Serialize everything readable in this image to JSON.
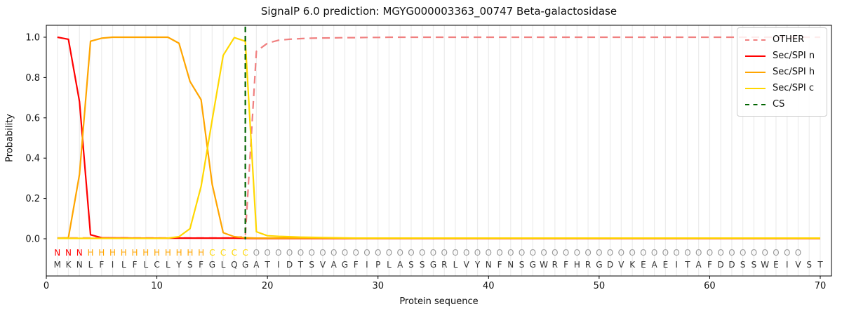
{
  "title": "SignalP 6.0 prediction: MGYG000003363_00747 Beta-galactosidase",
  "colors": {
    "other": "#f08080",
    "sec_spi_n": "#ff0000",
    "sec_spi_h": "#ffa500",
    "sec_spi_c": "#ffd700",
    "cs": "#006400",
    "grid": "#ececec",
    "axis": "#000000",
    "residue_text": "#333333",
    "region_O_text": "#9a9a9a"
  },
  "chart_data": {
    "type": "line",
    "title": "SignalP 6.0 prediction: MGYG000003363_00747 Beta-galactosidase",
    "xlabel": "Protein sequence",
    "ylabel": "Probability",
    "xlim": [
      0,
      71
    ],
    "ylim": [
      -0.18,
      1.06
    ],
    "grid": "vertical-per-residue",
    "legend_position": "upper right",
    "xticks": [
      0,
      10,
      20,
      30,
      40,
      50,
      60,
      70
    ],
    "yticks": [
      0.0,
      0.2,
      0.4,
      0.6,
      0.8,
      1.0
    ],
    "ytick_labels": [
      "0.0",
      "0.2",
      "0.4",
      "0.6",
      "0.8",
      "1.0"
    ],
    "cs_position": 18,
    "sequence": "MKNLFILFLCLYSFGLQGATIDTSVAGFIPLASSGRLVYNFNSGWRFHRGDVKEAEITAFDDSSWEIVST",
    "regions": "NNNHHHHHHHHHHHCCCCOOOOOOOOOOOOOOOOOOOOOOOOOOOOOOOOOOOOOOOOOOOOOOOOOO",
    "region_colors": {
      "N": "#ff0000",
      "H": "#ffa500",
      "C": "#ffd700",
      "O": "#9a9a9a"
    },
    "x": [
      1,
      2,
      3,
      4,
      5,
      6,
      7,
      8,
      9,
      10,
      11,
      12,
      13,
      14,
      15,
      16,
      17,
      18,
      19,
      20,
      21,
      22,
      23,
      24,
      25,
      26,
      27,
      28,
      29,
      30,
      31,
      32,
      33,
      34,
      35,
      36,
      37,
      38,
      39,
      40,
      41,
      42,
      43,
      44,
      45,
      46,
      47,
      48,
      49,
      50,
      51,
      52,
      53,
      54,
      55,
      56,
      57,
      58,
      59,
      60,
      61,
      62,
      63,
      64,
      65,
      66,
      67,
      68,
      69,
      70
    ],
    "series": [
      {
        "name": "OTHER",
        "color": "#f08080",
        "style": "dashed",
        "values": [
          0.004,
          0.004,
          0.004,
          0.004,
          0.004,
          0.004,
          0.004,
          0.004,
          0.004,
          0.004,
          0.004,
          0.004,
          0.004,
          0.004,
          0.004,
          0.004,
          0.005,
          0.012,
          0.93,
          0.97,
          0.985,
          0.99,
          0.993,
          0.995,
          0.996,
          0.997,
          0.998,
          0.998,
          0.999,
          0.999,
          1.0,
          1.0,
          1.0,
          1.0,
          1.0,
          1.0,
          1.0,
          1.0,
          1.0,
          1.0,
          1.0,
          1.0,
          1.0,
          1.0,
          1.0,
          1.0,
          1.0,
          1.0,
          1.0,
          1.0,
          1.0,
          1.0,
          1.0,
          1.0,
          1.0,
          1.0,
          1.0,
          1.0,
          1.0,
          1.0,
          1.0,
          1.0,
          1.0,
          1.0,
          1.0,
          1.0,
          1.0,
          1.0,
          1.0,
          1.0
        ]
      },
      {
        "name": "Sec/SPI n",
        "color": "#ff0000",
        "style": "solid",
        "values": [
          1.0,
          0.99,
          0.68,
          0.02,
          0.005,
          0.004,
          0.004,
          0.003,
          0.003,
          0.003,
          0.003,
          0.003,
          0.003,
          0.003,
          0.003,
          0.003,
          0.003,
          0.002,
          0.001,
          0.001,
          0.001,
          0.001,
          0.001,
          0.001,
          0.001,
          0.001,
          0.001,
          0.001,
          0.001,
          0.001,
          0.001,
          0.001,
          0.001,
          0.001,
          0.001,
          0.001,
          0.001,
          0.001,
          0.001,
          0.001,
          0.001,
          0.001,
          0.001,
          0.001,
          0.001,
          0.001,
          0.001,
          0.001,
          0.001,
          0.001,
          0.001,
          0.001,
          0.001,
          0.001,
          0.001,
          0.001,
          0.001,
          0.001,
          0.001,
          0.001,
          0.001,
          0.001,
          0.001,
          0.001,
          0.001,
          0.001,
          0.001,
          0.001,
          0.001,
          0.001
        ]
      },
      {
        "name": "Sec/SPI h",
        "color": "#ffa500",
        "style": "solid",
        "values": [
          0.002,
          0.005,
          0.32,
          0.98,
          0.995,
          1.0,
          1.0,
          1.0,
          1.0,
          1.0,
          1.0,
          0.97,
          0.78,
          0.69,
          0.27,
          0.03,
          0.01,
          0.005,
          0.003,
          0.003,
          0.003,
          0.003,
          0.003,
          0.003,
          0.003,
          0.003,
          0.003,
          0.003,
          0.003,
          0.003,
          0.003,
          0.003,
          0.003,
          0.003,
          0.003,
          0.003,
          0.003,
          0.003,
          0.003,
          0.003,
          0.003,
          0.003,
          0.003,
          0.003,
          0.003,
          0.003,
          0.003,
          0.003,
          0.003,
          0.003,
          0.003,
          0.003,
          0.003,
          0.003,
          0.003,
          0.003,
          0.003,
          0.003,
          0.003,
          0.003,
          0.003,
          0.003,
          0.003,
          0.003,
          0.003,
          0.003,
          0.003,
          0.003,
          0.003,
          0.003
        ]
      },
      {
        "name": "Sec/SPI c",
        "color": "#ffd700",
        "style": "solid",
        "values": [
          0.002,
          0.002,
          0.002,
          0.002,
          0.002,
          0.002,
          0.002,
          0.002,
          0.002,
          0.002,
          0.003,
          0.01,
          0.05,
          0.26,
          0.59,
          0.91,
          0.998,
          0.98,
          0.035,
          0.015,
          0.012,
          0.01,
          0.008,
          0.007,
          0.006,
          0.005,
          0.004,
          0.003,
          0.003,
          0.003,
          0.003,
          0.003,
          0.003,
          0.003,
          0.003,
          0.003,
          0.003,
          0.003,
          0.003,
          0.003,
          0.003,
          0.003,
          0.003,
          0.003,
          0.003,
          0.003,
          0.003,
          0.003,
          0.003,
          0.003,
          0.003,
          0.003,
          0.003,
          0.003,
          0.003,
          0.003,
          0.003,
          0.003,
          0.003,
          0.003,
          0.003,
          0.003,
          0.003,
          0.003,
          0.003,
          0.003,
          0.003,
          0.003,
          0.003,
          0.003
        ]
      }
    ],
    "legend": [
      {
        "label": "OTHER",
        "color": "#f08080",
        "style": "dashed"
      },
      {
        "label": "Sec/SPI n",
        "color": "#ff0000",
        "style": "solid"
      },
      {
        "label": "Sec/SPI h",
        "color": "#ffa500",
        "style": "solid"
      },
      {
        "label": "Sec/SPI c",
        "color": "#ffd700",
        "style": "solid"
      },
      {
        "label": "CS",
        "color": "#006400",
        "style": "dashed"
      }
    ]
  }
}
